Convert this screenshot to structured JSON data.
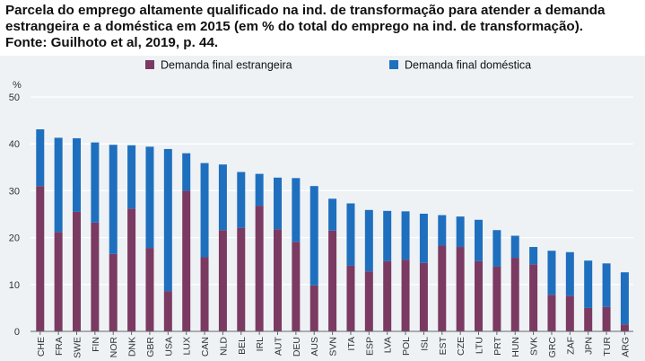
{
  "title_lines": [
    "Parcela do emprego altamente qualificado na ind. de transformação para atender a demanda",
    "estrangeira e a doméstica em 2015 (em % do total do emprego na ind. de transformação).",
    "Fonte: Guilhoto et al, 2019, p. 44."
  ],
  "chart_data": {
    "type": "bar",
    "stacked": true,
    "ylabel": "%",
    "ylim": [
      0,
      50
    ],
    "yticks": [
      0,
      10,
      20,
      30,
      40,
      50
    ],
    "grid": true,
    "legend_position": "top",
    "categories": [
      "CHE",
      "FRA",
      "SWE",
      "FIN",
      "NOR",
      "DNK",
      "GBR",
      "USA",
      "LUX",
      "CAN",
      "NLD",
      "BEL",
      "IRL",
      "AUT",
      "DEU",
      "AUS",
      "SVN",
      "ITA",
      "ESP",
      "LVA",
      "POL",
      "ISL",
      "EST",
      "CZE",
      "LTU",
      "PRT",
      "HUN",
      "SVK",
      "GRC",
      "ZAF",
      "JPN",
      "TUR",
      "ARG"
    ],
    "series": [
      {
        "name": "Demanda final estrangeira",
        "color": "#7b3a62",
        "values": [
          31.0,
          21.2,
          25.5,
          23.2,
          16.5,
          26.2,
          17.8,
          8.6,
          30.0,
          15.8,
          21.6,
          22.1,
          26.8,
          21.8,
          19.1,
          9.8,
          21.5,
          14.0,
          12.8,
          15.0,
          15.3,
          14.6,
          18.3,
          18.0,
          15.0,
          13.8,
          15.7,
          14.3,
          7.8,
          7.6,
          5.0,
          5.2,
          1.5
        ]
      },
      {
        "name": "Demanda final doméstica",
        "color": "#1f6fbf",
        "values": [
          12.1,
          20.1,
          15.7,
          17.1,
          23.3,
          13.5,
          21.6,
          30.3,
          8.0,
          20.1,
          14.0,
          11.9,
          6.8,
          11.0,
          13.6,
          21.2,
          6.8,
          13.3,
          13.1,
          10.7,
          10.3,
          10.5,
          6.5,
          6.5,
          8.8,
          7.8,
          4.7,
          3.7,
          9.4,
          9.3,
          10.1,
          9.3,
          11.1
        ]
      }
    ]
  }
}
